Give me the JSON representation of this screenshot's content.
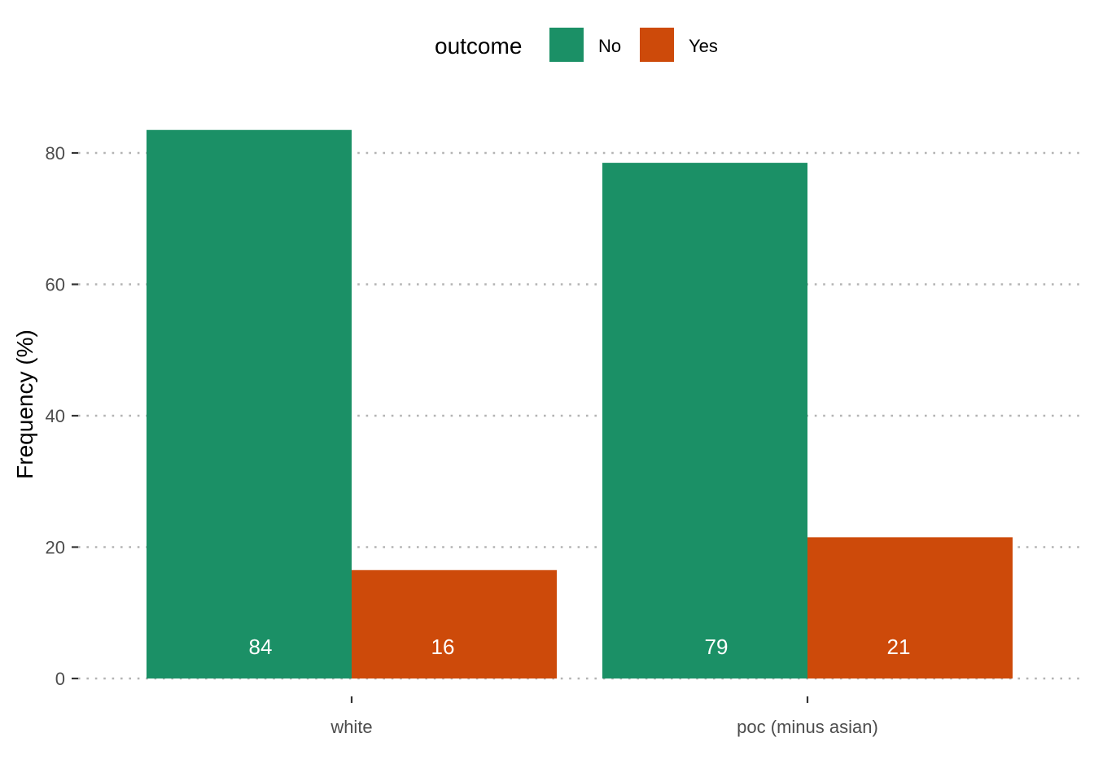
{
  "chart_data": {
    "type": "bar",
    "categories": [
      "white",
      "poc (minus asian)"
    ],
    "series": [
      {
        "name": "No",
        "values": [
          83.5,
          78.5
        ],
        "labels": [
          "84",
          "79"
        ],
        "color": "#1b9066"
      },
      {
        "name": "Yes",
        "values": [
          16.5,
          21.5
        ],
        "labels": [
          "16",
          "21"
        ],
        "color": "#cd4a0a"
      }
    ],
    "ylabel": "Frequency (%)",
    "xlabel": "",
    "ylim": [
      0,
      90
    ],
    "yticks": [
      0,
      20,
      40,
      60,
      80
    ],
    "ytick_labels": [
      "0",
      "20",
      "40",
      "60",
      "80"
    ],
    "legend": {
      "title": "outcome",
      "placement": "top"
    },
    "grid": "horizontal-dotted"
  }
}
